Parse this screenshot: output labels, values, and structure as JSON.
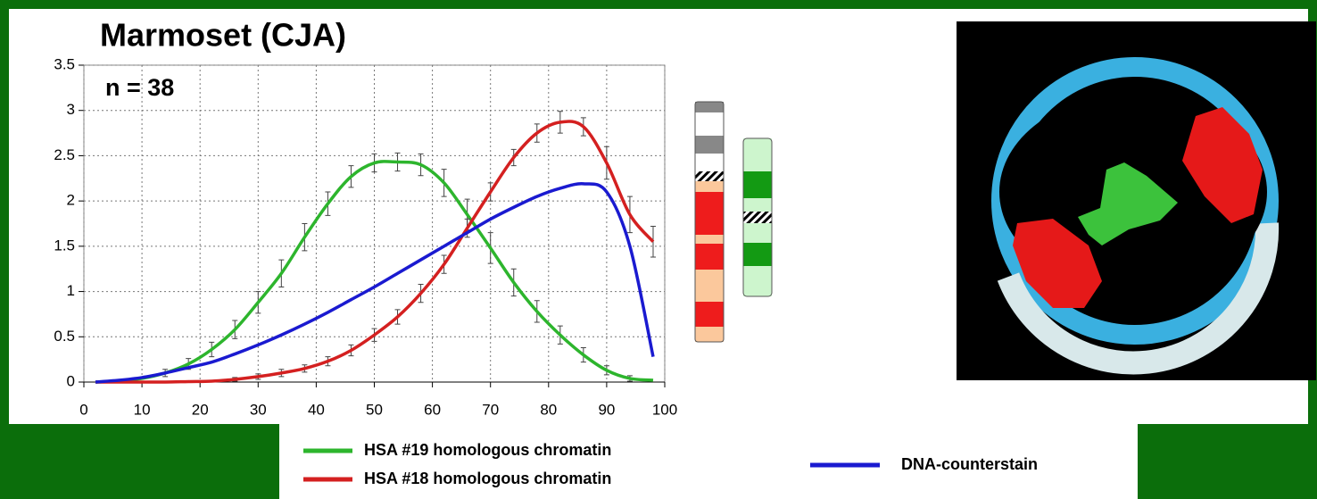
{
  "chart_data": {
    "type": "line",
    "title": "Marmoset (CJA)",
    "annotation": "n = 38",
    "x": [
      2,
      6,
      10,
      14,
      18,
      22,
      26,
      30,
      34,
      38,
      42,
      46,
      50,
      54,
      58,
      62,
      66,
      70,
      74,
      78,
      82,
      86,
      90,
      94,
      98
    ],
    "series": [
      {
        "name": "HSA #19 homologous chromatin",
        "color": "#2db52d",
        "values": [
          0,
          0.01,
          0.04,
          0.1,
          0.2,
          0.36,
          0.58,
          0.88,
          1.2,
          1.6,
          1.97,
          2.27,
          2.42,
          2.43,
          2.4,
          2.2,
          1.85,
          1.48,
          1.1,
          0.78,
          0.52,
          0.3,
          0.13,
          0.04,
          0.02
        ],
        "errors": [
          null,
          null,
          null,
          0.04,
          0.06,
          0.08,
          0.1,
          0.12,
          0.15,
          0.15,
          0.13,
          0.12,
          0.1,
          0.1,
          0.12,
          0.15,
          0.17,
          0.17,
          0.15,
          0.12,
          0.1,
          0.08,
          0.05,
          0.03,
          null
        ]
      },
      {
        "name": "HSA #18 homologous chromatin",
        "color": "#d42020",
        "values": [
          0,
          0,
          0,
          0,
          0.005,
          0.01,
          0.03,
          0.06,
          0.1,
          0.15,
          0.23,
          0.35,
          0.52,
          0.72,
          0.98,
          1.3,
          1.7,
          2.1,
          2.48,
          2.75,
          2.87,
          2.82,
          2.42,
          1.85,
          1.55
        ],
        "errors": [
          null,
          null,
          null,
          null,
          null,
          null,
          0.02,
          0.03,
          0.04,
          0.04,
          0.05,
          0.06,
          0.07,
          0.08,
          0.1,
          0.1,
          0.1,
          0.1,
          0.09,
          0.1,
          0.12,
          0.1,
          0.18,
          0.2,
          0.17
        ]
      },
      {
        "name": "DNA-counterstain",
        "color": "#1a1ad0",
        "values": [
          0,
          0.02,
          0.05,
          0.1,
          0.16,
          0.22,
          0.31,
          0.41,
          0.52,
          0.64,
          0.77,
          0.91,
          1.05,
          1.2,
          1.35,
          1.5,
          1.65,
          1.8,
          1.93,
          2.05,
          2.14,
          2.19,
          2.1,
          1.5,
          0.28
        ]
      }
    ],
    "xlim": [
      0,
      100
    ],
    "xticks": [
      0,
      10,
      20,
      30,
      40,
      50,
      60,
      70,
      80,
      90,
      100
    ],
    "ylim": [
      0,
      3.5
    ],
    "yticks": [
      0,
      0.5,
      1,
      1.5,
      2,
      2.5,
      3,
      3.5
    ],
    "grid": true
  }
}
